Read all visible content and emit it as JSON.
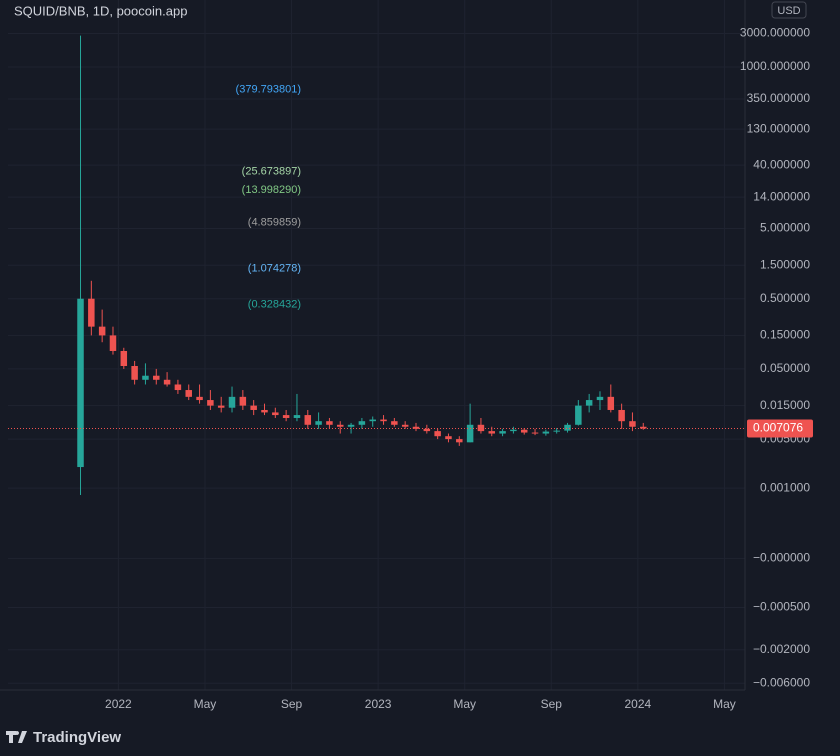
{
  "chart_data": {
    "type": "candlestick",
    "title": "SQUID/BNB, 1D, poocoin.app",
    "currency": "USD",
    "brand": "TradingView",
    "yscale": "symlog",
    "grid": true,
    "up_color": "#26a69a",
    "down_color": "#ef5350",
    "categories": [
      null,
      null,
      null,
      null,
      null,
      null,
      null,
      null,
      null,
      null,
      null,
      null,
      null,
      null,
      null,
      null,
      null,
      null,
      null,
      null,
      null,
      null,
      null,
      null,
      null,
      null,
      null,
      null,
      null,
      null,
      null,
      null,
      null,
      null,
      null,
      null,
      null,
      null,
      null,
      null,
      null,
      null,
      null,
      null,
      null,
      null,
      null,
      null,
      null,
      null,
      null,
      null,
      null
    ],
    "open": [
      0.002,
      0.5,
      0.2,
      0.15,
      0.09,
      0.055,
      0.035,
      0.04,
      0.035,
      0.03,
      0.025,
      0.02,
      0.018,
      0.015,
      0.014,
      0.02,
      0.015,
      0.013,
      0.012,
      0.011,
      0.01,
      0.011,
      0.008,
      0.009,
      0.008,
      0.0075,
      0.008,
      0.009,
      0.0095,
      0.009,
      0.008,
      0.0075,
      0.007,
      0.0065,
      0.0055,
      0.005,
      0.0045,
      0.008,
      0.0065,
      0.006,
      0.0065,
      0.0068,
      0.0062,
      0.006,
      0.0064,
      0.0066,
      0.008,
      0.015,
      0.018,
      0.02,
      0.013,
      0.009,
      0.0075
    ],
    "high": [
      2800,
      0.9,
      0.35,
      0.2,
      0.1,
      0.065,
      0.06,
      0.05,
      0.045,
      0.035,
      0.03,
      0.03,
      0.025,
      0.02,
      0.028,
      0.025,
      0.018,
      0.016,
      0.014,
      0.013,
      0.022,
      0.013,
      0.012,
      0.01,
      0.009,
      0.0085,
      0.01,
      0.0105,
      0.011,
      0.01,
      0.009,
      0.0085,
      0.008,
      0.007,
      0.006,
      0.0055,
      0.016,
      0.01,
      0.0075,
      0.007,
      0.0075,
      0.0072,
      0.007,
      0.0068,
      0.0072,
      0.0085,
      0.018,
      0.022,
      0.024,
      0.03,
      0.016,
      0.012,
      0.0085
    ],
    "low": [
      0.0008,
      0.15,
      0.12,
      0.08,
      0.05,
      0.03,
      0.03,
      0.03,
      0.028,
      0.022,
      0.018,
      0.016,
      0.013,
      0.012,
      0.012,
      0.013,
      0.011,
      0.011,
      0.01,
      0.009,
      0.009,
      0.007,
      0.007,
      0.007,
      0.006,
      0.006,
      0.007,
      0.0075,
      0.008,
      0.0075,
      0.007,
      0.0065,
      0.006,
      0.005,
      0.0045,
      0.004,
      0.0045,
      0.006,
      0.0055,
      0.0055,
      0.006,
      0.0058,
      0.0057,
      0.0056,
      0.006,
      0.0062,
      0.0078,
      0.012,
      0.013,
      0.012,
      0.007,
      0.0065,
      0.0068
    ],
    "close": [
      0.5,
      0.2,
      0.15,
      0.09,
      0.055,
      0.035,
      0.04,
      0.035,
      0.03,
      0.025,
      0.02,
      0.018,
      0.015,
      0.014,
      0.02,
      0.015,
      0.013,
      0.012,
      0.011,
      0.01,
      0.011,
      0.008,
      0.009,
      0.008,
      0.0075,
      0.008,
      0.009,
      0.0095,
      0.009,
      0.008,
      0.0075,
      0.007,
      0.0065,
      0.0055,
      0.005,
      0.0045,
      0.008,
      0.0065,
      0.006,
      0.0065,
      0.0068,
      0.0062,
      0.006,
      0.0064,
      0.0066,
      0.008,
      0.015,
      0.018,
      0.02,
      0.013,
      0.009,
      0.0075,
      0.007076
    ],
    "ylim": [
      -0.0075,
      9000
    ],
    "yticks": [
      {
        "value": 3000,
        "label": "3000.000000"
      },
      {
        "value": 1000,
        "label": "1000.000000"
      },
      {
        "value": 350,
        "label": "350.000000"
      },
      {
        "value": 130,
        "label": "130.000000"
      },
      {
        "value": 40,
        "label": "40.000000"
      },
      {
        "value": 14,
        "label": "14.000000"
      },
      {
        "value": 5,
        "label": "5.000000"
      },
      {
        "value": 1.5,
        "label": "1.500000"
      },
      {
        "value": 0.5,
        "label": "0.500000"
      },
      {
        "value": 0.15,
        "label": "0.150000"
      },
      {
        "value": 0.05,
        "label": "0.050000"
      },
      {
        "value": 0.015,
        "label": "0.015000"
      },
      {
        "value": 0.005,
        "label": "0.005000"
      },
      {
        "value": 0.001,
        "label": "0.001000"
      },
      {
        "value": 0,
        "label": "−0.000000"
      },
      {
        "value": -0.0005,
        "label": "−0.000500"
      },
      {
        "value": -0.002,
        "label": "−0.002000"
      },
      {
        "value": -0.006,
        "label": "−0.006000"
      }
    ],
    "xlim": [
      -6.2,
      61.9
    ],
    "xticks": [
      {
        "value": 4,
        "label": "2022"
      },
      {
        "value": 12,
        "label": "May"
      },
      {
        "value": 20,
        "label": "Sep"
      },
      {
        "value": 28,
        "label": "2023"
      },
      {
        "value": 36,
        "label": "May"
      },
      {
        "value": 44,
        "label": "Sep"
      },
      {
        "value": 52,
        "label": "2024"
      },
      {
        "value": 60,
        "label": "May"
      }
    ],
    "annotations": [
      {
        "value": 379.793801,
        "label": "(379.793801)",
        "color": "#42a5f5"
      },
      {
        "value": 25.673897,
        "label": "(25.673897)",
        "color": "#a5d6a7"
      },
      {
        "value": 13.99829,
        "label": "(13.998290)",
        "color": "#81c784"
      },
      {
        "value": 4.859859,
        "label": "(4.859859)",
        "color": "#9e9e9e"
      },
      {
        "value": 1.074278,
        "label": "(1.074278)",
        "color": "#64b5f6"
      },
      {
        "value": 0.328432,
        "label": "(0.328432)",
        "color": "#26a69a"
      }
    ]
  }
}
